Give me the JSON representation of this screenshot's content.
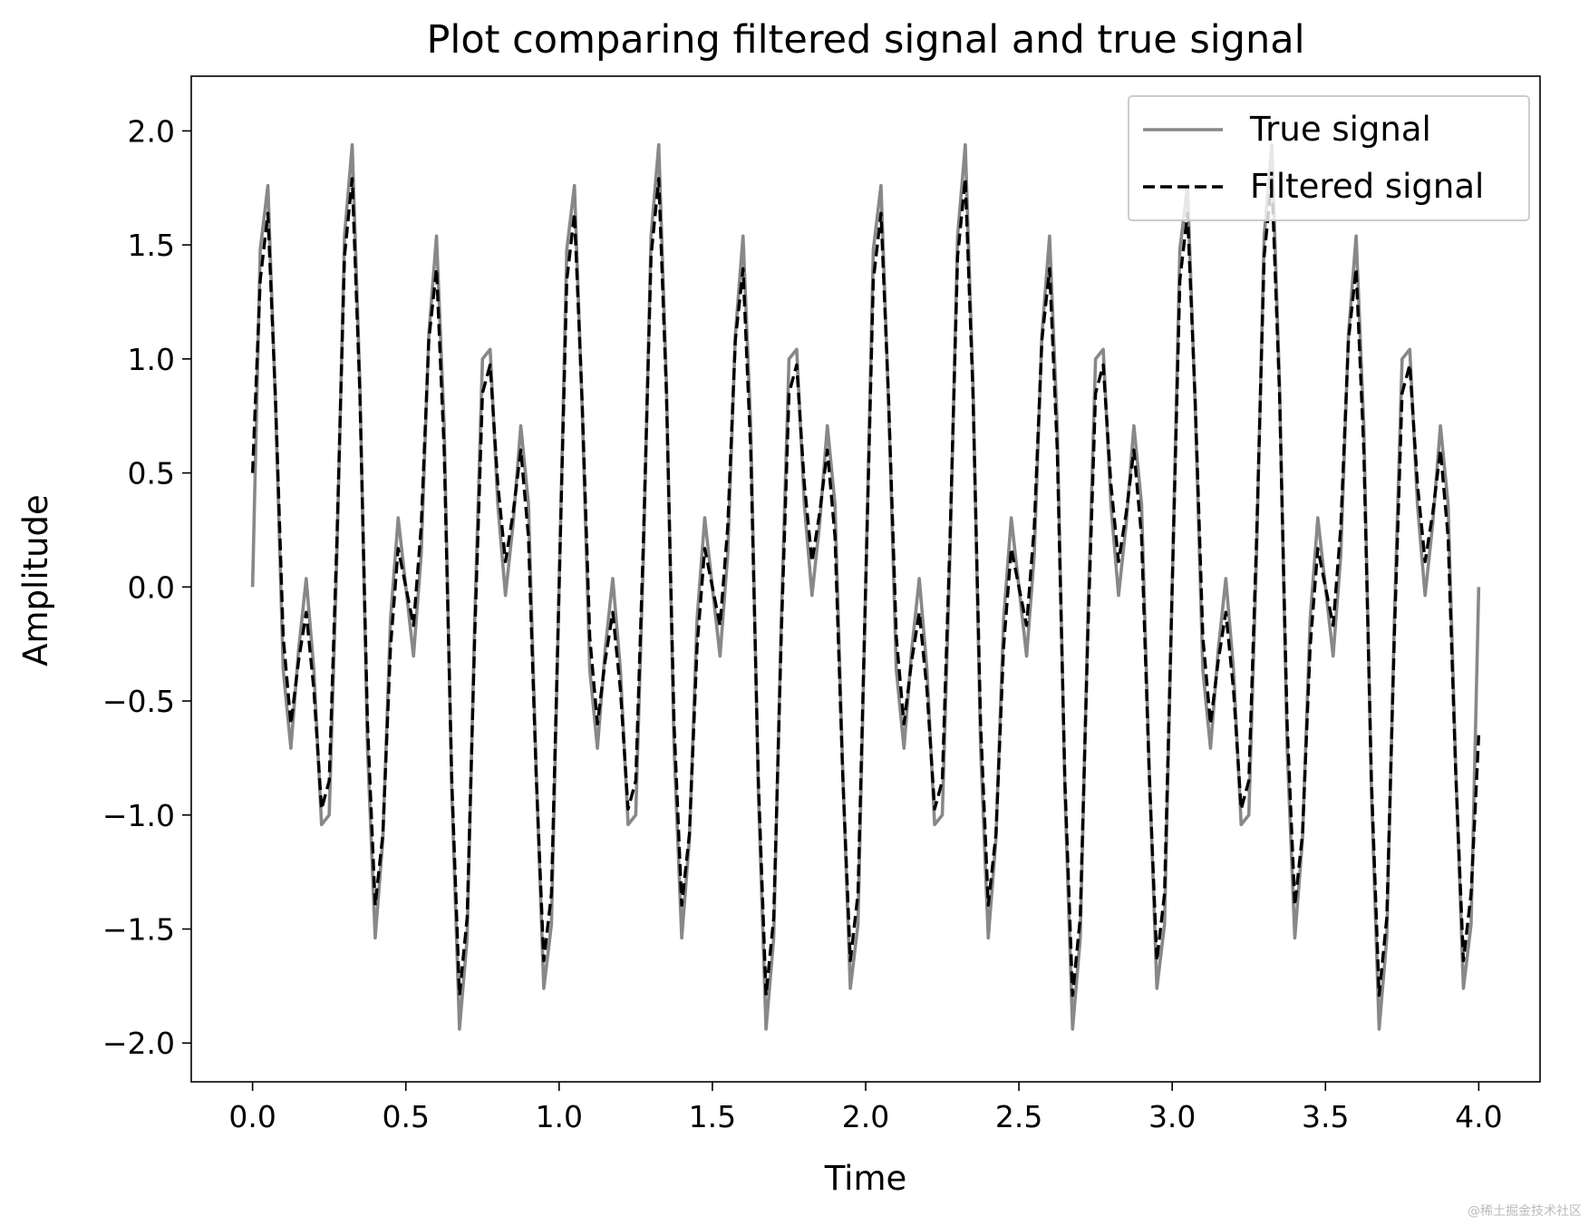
{
  "chart_data": {
    "type": "line",
    "title": "Plot comparing filtered signal and true signal",
    "x_label": "Time",
    "y_label": "Amplitude",
    "xlim": [
      -0.2,
      4.2
    ],
    "xticks": [
      {
        "value": 0,
        "label": "0.0"
      },
      0.5,
      {
        "value": 1,
        "label": "1.0"
      },
      1.5,
      {
        "value": 2,
        "label": "2.0"
      },
      2.5,
      {
        "value": 3,
        "label": "3.0"
      },
      3.5,
      {
        "value": 4,
        "label": "4.0"
      }
    ],
    "ylim": [
      -2.17,
      2.24
    ],
    "yticks": [
      {
        "value": -2,
        "label": "−2.0"
      },
      {
        "value": -1.5,
        "label": "−1.5"
      },
      {
        "value": -1,
        "label": "−1.0"
      },
      {
        "value": -0.5,
        "label": "−0.5"
      },
      {
        "value": 0,
        "label": "0.0"
      },
      0.5,
      {
        "value": 1,
        "label": "1.0"
      },
      1.5,
      {
        "value": 2,
        "label": "2.0"
      }
    ],
    "grid": false,
    "legend": "upper right",
    "x": [
      0,
      0.025,
      0.05,
      0.075,
      0.1,
      0.125,
      0.15,
      0.175,
      0.2,
      0.225,
      0.25,
      0.275,
      0.3,
      0.325,
      0.35,
      0.375,
      0.4,
      0.425,
      0.45,
      0.475,
      0.5,
      0.525,
      0.55,
      0.575,
      0.6,
      0.625,
      0.65,
      0.675,
      0.7,
      0.725,
      0.75,
      0.775,
      0.8,
      0.825,
      0.85,
      0.875,
      0.9,
      0.925,
      0.95,
      0.975,
      1,
      1.025,
      1.05,
      1.075,
      1.1,
      1.125,
      1.15,
      1.175,
      1.2,
      1.225,
      1.25,
      1.275,
      1.3,
      1.325,
      1.35,
      1.375,
      1.4,
      1.425,
      1.45,
      1.475,
      1.5,
      1.525,
      1.55,
      1.575,
      1.6,
      1.625,
      1.65,
      1.675,
      1.7,
      1.725,
      1.75,
      1.775,
      1.8,
      1.825,
      1.85,
      1.875,
      1.9,
      1.925,
      1.95,
      1.975,
      2,
      2.025,
      2.05,
      2.075,
      2.1,
      2.125,
      2.15,
      2.175,
      2.2,
      2.225,
      2.25,
      2.275,
      2.3,
      2.325,
      2.35,
      2.375,
      2.4,
      2.425,
      2.45,
      2.475,
      2.5,
      2.525,
      2.55,
      2.575,
      2.6,
      2.625,
      2.65,
      2.675,
      2.7,
      2.725,
      2.75,
      2.775,
      2.8,
      2.825,
      2.85,
      2.875,
      2.9,
      2.925,
      2.95,
      2.975,
      3,
      3.025,
      3.05,
      3.075,
      3.1,
      3.125,
      3.15,
      3.175,
      3.2,
      3.225,
      3.25,
      3.275,
      3.3,
      3.325,
      3.35,
      3.375,
      3.4,
      3.425,
      3.45,
      3.475,
      3.5,
      3.525,
      3.55,
      3.575,
      3.6,
      3.625,
      3.65,
      3.675,
      3.7,
      3.725,
      3.75,
      3.775,
      3.8,
      3.825,
      3.85,
      3.875,
      3.9,
      3.925,
      3.95,
      3.975,
      4
    ],
    "series": [
      {
        "name": "True signal",
        "color": "#888888",
        "dash": "solid",
        "values": [
          0,
          1.479,
          1.76,
          0.795,
          -0.363,
          -0.707,
          -0.279,
          0.037,
          -0.363,
          -1.042,
          -1,
          0.134,
          1.539,
          1.939,
          0.897,
          -0.707,
          -1.539,
          -1.107,
          -0.142,
          0.303,
          0,
          -0.303,
          0.142,
          1.107,
          1.539,
          0.707,
          -0.897,
          -1.939,
          -1.539,
          -0.134,
          1,
          1.042,
          0.363,
          -0.037,
          0.279,
          0.707,
          0.363,
          -0.795,
          -1.76,
          -1.479,
          0,
          1.479,
          1.76,
          0.795,
          -0.363,
          -0.707,
          -0.279,
          0.037,
          -0.363,
          -1.042,
          -1,
          0.134,
          1.539,
          1.939,
          0.897,
          -0.707,
          -1.539,
          -1.107,
          -0.142,
          0.303,
          0,
          -0.303,
          0.142,
          1.107,
          1.539,
          0.707,
          -0.897,
          -1.939,
          -1.539,
          -0.134,
          1,
          1.042,
          0.363,
          -0.037,
          0.279,
          0.707,
          0.363,
          -0.795,
          -1.76,
          -1.479,
          0,
          1.479,
          1.76,
          0.795,
          -0.363,
          -0.707,
          -0.279,
          0.037,
          -0.363,
          -1.042,
          -1,
          0.134,
          1.539,
          1.939,
          0.897,
          -0.707,
          -1.539,
          -1.107,
          -0.142,
          0.303,
          0,
          -0.303,
          0.142,
          1.107,
          1.539,
          0.707,
          -0.897,
          -1.939,
          -1.539,
          -0.134,
          1,
          1.042,
          0.363,
          -0.037,
          0.279,
          0.707,
          0.363,
          -0.795,
          -1.76,
          -1.479,
          0,
          1.479,
          1.76,
          0.795,
          -0.363,
          -0.707,
          -0.279,
          0.037,
          -0.363,
          -1.042,
          -1,
          0.134,
          1.539,
          1.939,
          0.897,
          -0.707,
          -1.539,
          -1.107,
          -0.142,
          0.303,
          0,
          -0.303,
          0.142,
          1.107,
          1.539,
          0.707,
          -0.897,
          -1.939,
          -1.539,
          -0.134,
          1,
          1.042,
          0.363,
          -0.037,
          0.279,
          0.707,
          0.363,
          -0.795,
          -1.76,
          -1.479,
          0
        ]
      },
      {
        "name": "Filtered signal",
        "color": "#000000",
        "dash": "dashed",
        "values": [
          0.5,
          1.345,
          1.639,
          0.818,
          -0.22,
          -0.601,
          -0.325,
          -0.111,
          -0.451,
          -0.974,
          -0.85,
          0.202,
          1.451,
          1.791,
          0.851,
          -0.601,
          -1.396,
          -1.084,
          -0.263,
          0.169,
          0,
          -0.169,
          0.263,
          1.084,
          1.396,
          0.601,
          -0.851,
          -1.791,
          -1.451,
          -0.202,
          0.85,
          0.974,
          0.451,
          0.111,
          0.325,
          0.601,
          0.22,
          -0.818,
          -1.639,
          -1.345,
          0,
          1.345,
          1.639,
          0.818,
          -0.22,
          -0.601,
          -0.325,
          -0.111,
          -0.451,
          -0.974,
          -0.85,
          0.202,
          1.451,
          1.791,
          0.851,
          -0.601,
          -1.396,
          -1.084,
          -0.263,
          0.169,
          0,
          -0.169,
          0.263,
          1.084,
          1.396,
          0.601,
          -0.851,
          -1.791,
          -1.451,
          -0.202,
          0.85,
          0.974,
          0.451,
          0.111,
          0.325,
          0.601,
          0.22,
          -0.818,
          -1.639,
          -1.345,
          0,
          1.345,
          1.639,
          0.818,
          -0.22,
          -0.601,
          -0.325,
          -0.111,
          -0.451,
          -0.974,
          -0.85,
          0.202,
          1.451,
          1.791,
          0.851,
          -0.601,
          -1.396,
          -1.084,
          -0.263,
          0.169,
          0,
          -0.169,
          0.263,
          1.084,
          1.396,
          0.601,
          -0.851,
          -1.791,
          -1.451,
          -0.202,
          0.85,
          0.974,
          0.451,
          0.111,
          0.325,
          0.601,
          0.22,
          -0.818,
          -1.639,
          -1.345,
          0,
          1.345,
          1.639,
          0.818,
          -0.22,
          -0.601,
          -0.325,
          -0.111,
          -0.451,
          -0.974,
          -0.85,
          0.202,
          1.451,
          1.791,
          0.851,
          -0.601,
          -1.396,
          -1.084,
          -0.263,
          0.169,
          0,
          -0.169,
          0.263,
          1.084,
          1.396,
          0.601,
          -0.851,
          -1.791,
          -1.451,
          -0.202,
          0.85,
          0.974,
          0.451,
          0.111,
          0.325,
          0.601,
          0.22,
          -0.818,
          -1.639,
          -1.345,
          -0.65
        ]
      }
    ]
  },
  "watermark": "@稀土掘金技术社区"
}
